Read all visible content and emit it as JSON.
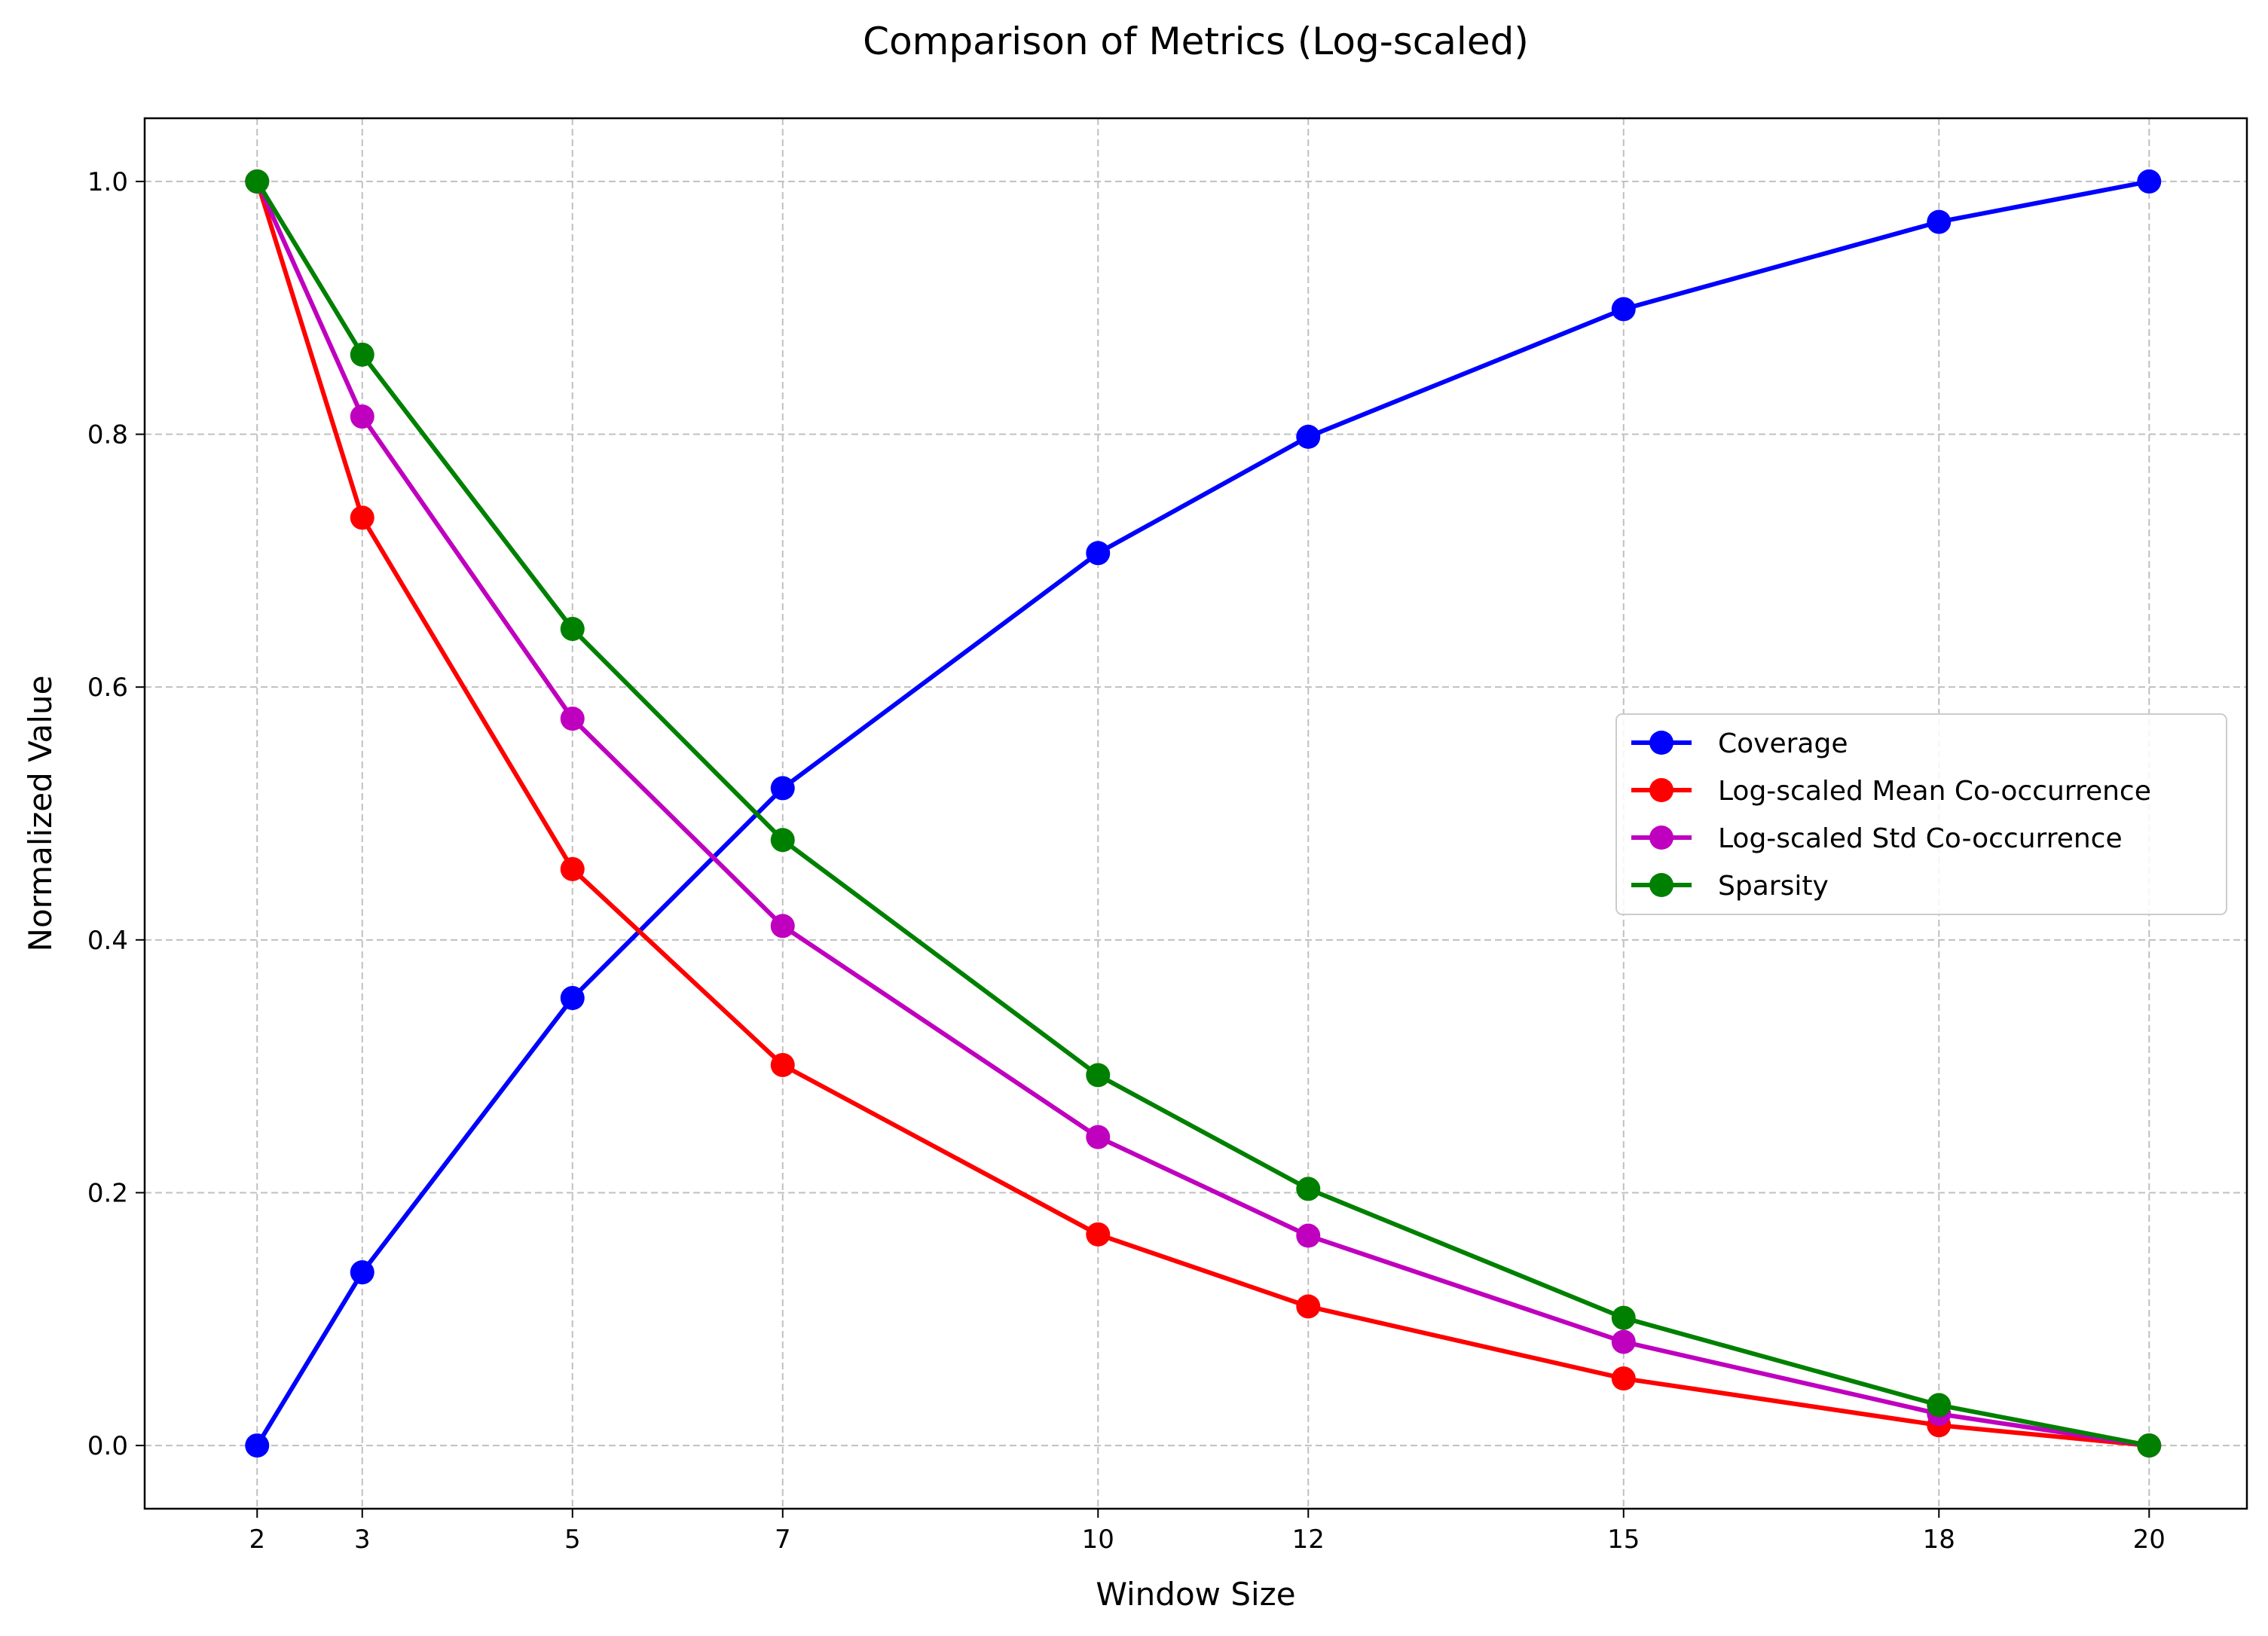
{
  "chart_data": {
    "type": "line",
    "title": "Comparison of Metrics (Log-scaled)",
    "xlabel": "Window Size",
    "ylabel": "Normalized Value",
    "x": [
      2,
      3,
      5,
      7,
      10,
      12,
      15,
      18,
      20
    ],
    "xticks": [
      "2",
      "3",
      "5",
      "7",
      "10",
      "12",
      "15",
      "18",
      "20"
    ],
    "yticks": [
      "0.0",
      "0.2",
      "0.4",
      "0.6",
      "0.8",
      "1.0"
    ],
    "xlim": [
      0.93,
      20.93
    ],
    "ylim": [
      -0.05,
      1.05
    ],
    "grid": true,
    "legend_position": "center-right",
    "series": [
      {
        "name": "Coverage",
        "color": "#0000ff",
        "values": [
          0.0,
          0.137,
          0.354,
          0.52,
          0.706,
          0.798,
          0.899,
          0.968,
          1.0
        ]
      },
      {
        "name": "Log-scaled Mean Co-occurrence",
        "color": "#ff0000",
        "values": [
          1.0,
          0.734,
          0.456,
          0.301,
          0.167,
          0.11,
          0.053,
          0.016,
          0.0
        ]
      },
      {
        "name": "Log-scaled Std Co-occurrence",
        "color": "#bf00bf",
        "values": [
          1.0,
          0.814,
          0.575,
          0.411,
          0.244,
          0.166,
          0.082,
          0.025,
          0.0
        ]
      },
      {
        "name": "Sparsity",
        "color": "#008000",
        "values": [
          1.0,
          0.863,
          0.646,
          0.479,
          0.293,
          0.203,
          0.101,
          0.032,
          0.0
        ]
      }
    ]
  }
}
